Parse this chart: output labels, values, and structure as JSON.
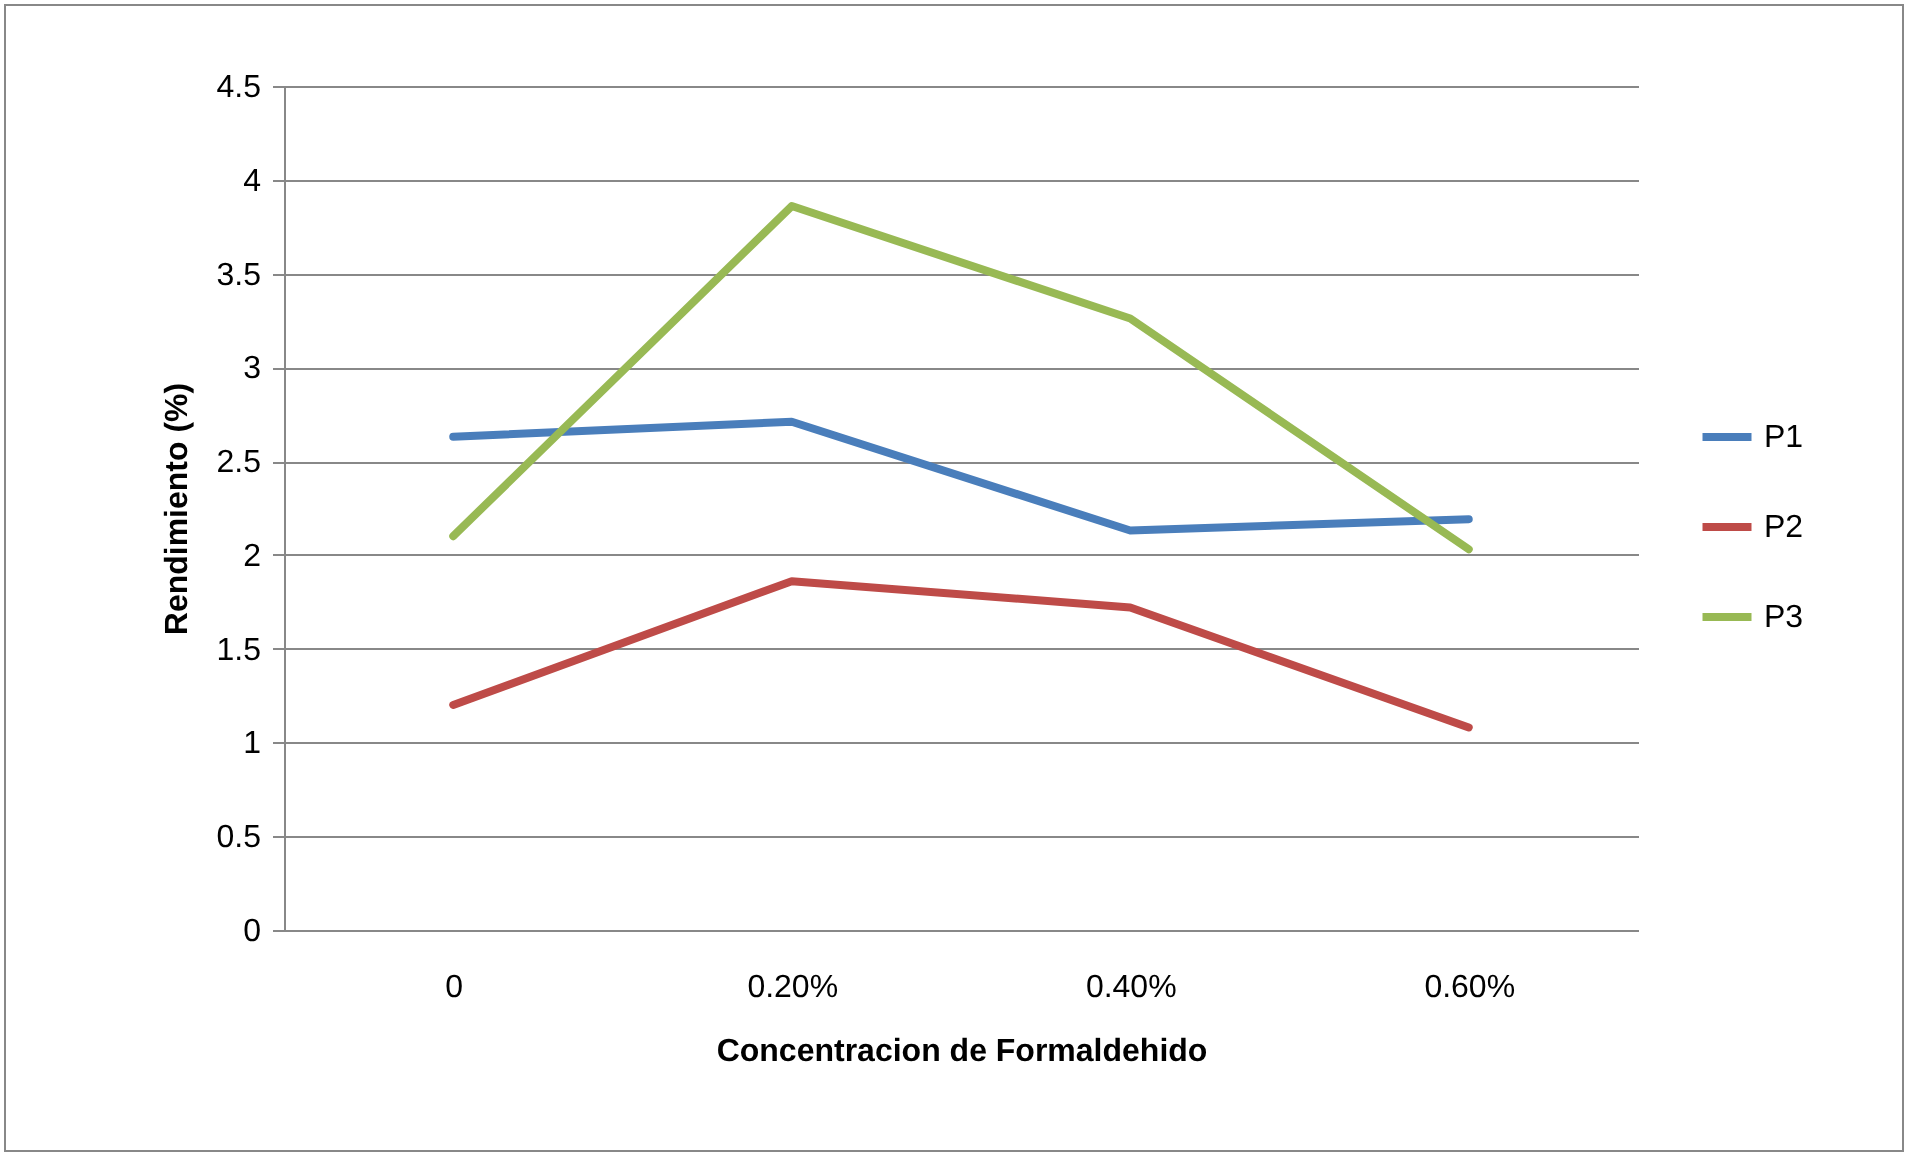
{
  "chart_data": {
    "type": "line",
    "xlabel": "Concentracion de Formaldehido",
    "ylabel": "Rendimiento (%)",
    "categories": [
      "0",
      "0.20%",
      "0.40%",
      "0.60%"
    ],
    "series": [
      {
        "name": "P1",
        "color": "#4a7ebb",
        "values": [
          2.63,
          2.71,
          2.13,
          2.19
        ]
      },
      {
        "name": "P2",
        "color": "#be4b48",
        "values": [
          1.2,
          1.86,
          1.72,
          1.08
        ]
      },
      {
        "name": "P3",
        "color": "#98b954",
        "values": [
          2.1,
          3.86,
          3.26,
          2.03
        ]
      }
    ],
    "ylim": [
      0,
      4.5
    ],
    "yticks": [
      0,
      0.5,
      1,
      1.5,
      2,
      2.5,
      3,
      3.5,
      4,
      4.5
    ],
    "grid": "y",
    "legend": "right",
    "marker": "none"
  }
}
